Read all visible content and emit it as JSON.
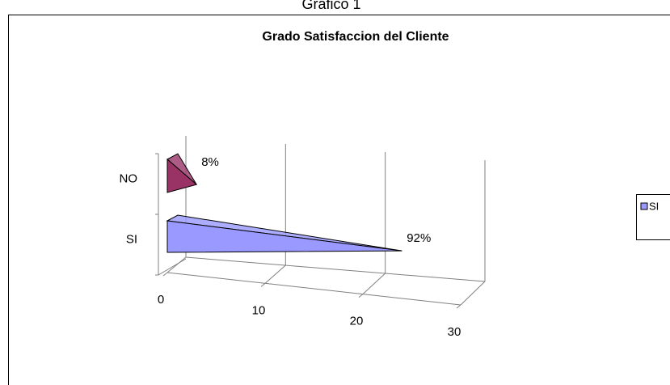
{
  "page_title": "Grafico 1",
  "chart_data": {
    "type": "bar3d",
    "title": "Grado Satisfaccion del Cliente",
    "categories": [
      "NO",
      "SI"
    ],
    "values": [
      2,
      23
    ],
    "value_labels": [
      "8%",
      "92%"
    ],
    "colors": [
      "#993366",
      "#9999ff"
    ],
    "xlim": [
      0,
      30
    ],
    "xticks": [
      0,
      10,
      20,
      30
    ],
    "grid": true,
    "legend": "right"
  }
}
